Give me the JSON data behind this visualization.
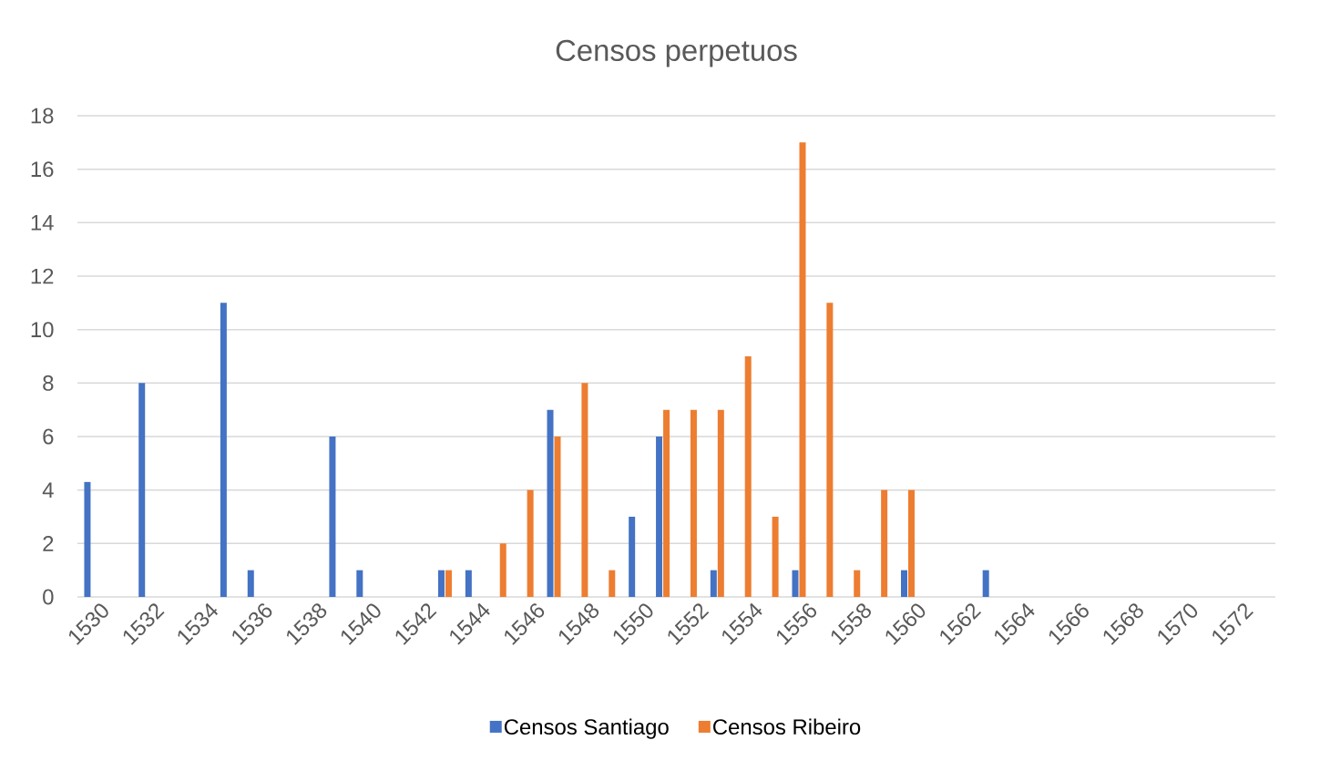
{
  "chart_data": {
    "type": "bar",
    "title": "Censos perpetuos",
    "categories": [
      "1530",
      null,
      "1532",
      null,
      "1534",
      null,
      "1536",
      null,
      "1538",
      null,
      "1540",
      null,
      "1542",
      null,
      "1544",
      null,
      "1546",
      null,
      "1548",
      null,
      "1550",
      null,
      "1552",
      null,
      "1554",
      null,
      "1556",
      null,
      "1558",
      null,
      "1560",
      null,
      "1562",
      null,
      "1564",
      null,
      "1566",
      null,
      "1568",
      null,
      "1570",
      null,
      "1572",
      null
    ],
    "series": [
      {
        "name": "Censos Santiago",
        "color": "#4472c4",
        "values": [
          4.3,
          0,
          8,
          0,
          0,
          11,
          1,
          0,
          0,
          6,
          1,
          0,
          0,
          1,
          1,
          0,
          0,
          7,
          0,
          0,
          3,
          6,
          0,
          1,
          0,
          0,
          1,
          0,
          0,
          0,
          1,
          0,
          0,
          1,
          0,
          0,
          0,
          0,
          0,
          0,
          0,
          0,
          0,
          0
        ]
      },
      {
        "name": "Censos Ribeiro",
        "color": "#ed7d31",
        "values": [
          0,
          0,
          0,
          0,
          0,
          0,
          0,
          0,
          0,
          0,
          0,
          0,
          0,
          1,
          0,
          2,
          4,
          6,
          8,
          1,
          0,
          7,
          7,
          7,
          9,
          3,
          17,
          11,
          1,
          4,
          4,
          0,
          0,
          0,
          0,
          0,
          0,
          0,
          0,
          0,
          0,
          0,
          0,
          0
        ]
      }
    ],
    "ylim": [
      0,
      18
    ],
    "yticks": [
      0,
      2,
      4,
      6,
      8,
      10,
      12,
      14,
      16,
      18
    ],
    "grid": "y",
    "legend": "bottom"
  }
}
